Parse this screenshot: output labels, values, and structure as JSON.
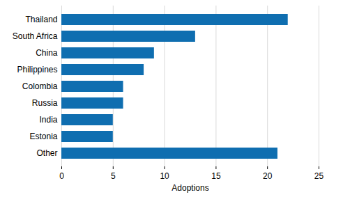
{
  "chart_data": {
    "type": "bar",
    "orientation": "horizontal",
    "categories": [
      "Thailand",
      "South Africa",
      "China",
      "Philippines",
      "Colombia",
      "Russia",
      "India",
      "Estonia",
      "Other"
    ],
    "values": [
      22,
      13,
      9,
      8,
      6,
      6,
      5,
      5,
      21
    ],
    "color": "#0f6eb0",
    "x_label": "Adoptions",
    "xlim": [
      0,
      25
    ],
    "xticks": [
      0,
      5,
      10,
      15,
      20,
      25
    ],
    "grid": true
  }
}
